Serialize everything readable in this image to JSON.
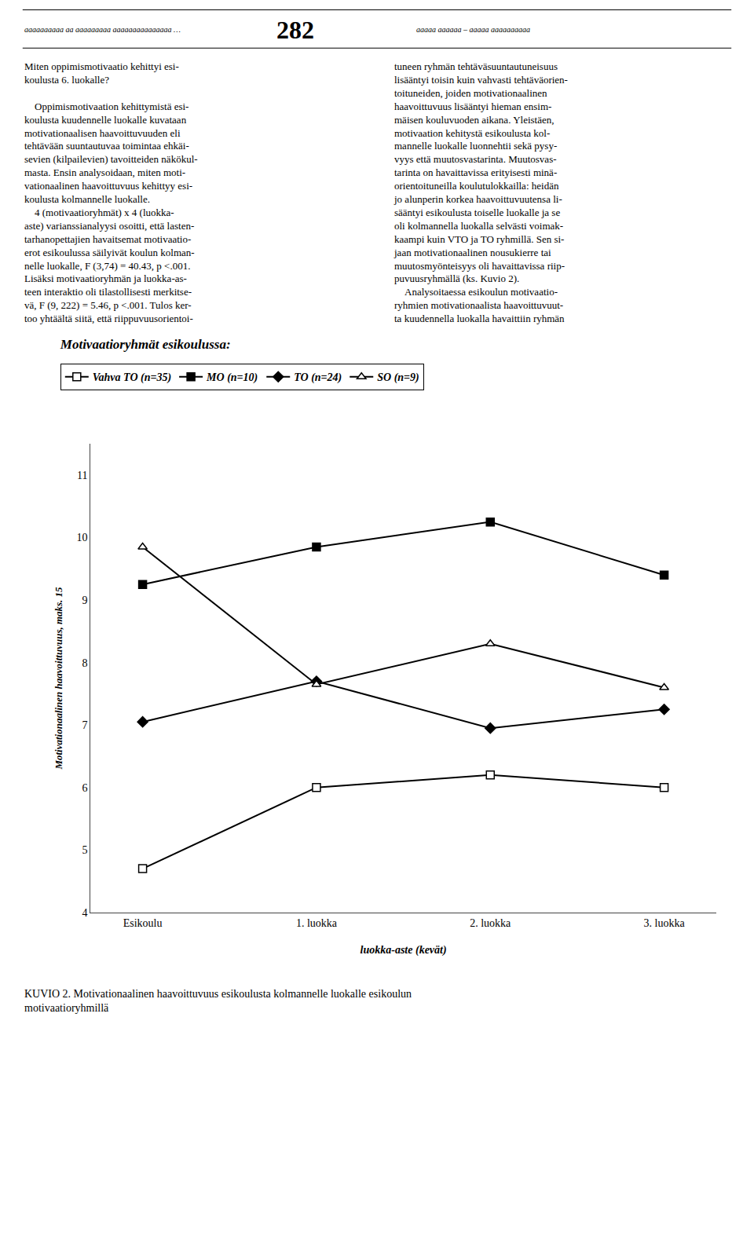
{
  "chart_data": {
    "type": "line",
    "title": "Motivaatioryhmät esikoulussa:",
    "x_label": "luokka-aste (kevät)",
    "y_label": "Motivationaalinen haavoittuvuus, maks. 15",
    "categories": [
      "Esikoulu",
      "1. luokka",
      "2. luokka",
      "3. luokka"
    ],
    "series": [
      {
        "name": "Vahva TO (n=35)",
        "color": "#000000",
        "marker": "square-open",
        "values": [
          4.7,
          6.0,
          6.2,
          6.0
        ]
      },
      {
        "name": "MO (n=10)",
        "color": "#000000",
        "marker": "square",
        "values": [
          9.25,
          9.85,
          10.25,
          9.4
        ]
      },
      {
        "name": "TO (n=24)",
        "color": "#000000",
        "marker": "diamond",
        "values": [
          7.05,
          7.7,
          6.95,
          7.25
        ]
      },
      {
        "name": "SO (n=9)",
        "color": "#000000",
        "marker": "triangle-up-open",
        "values": [
          9.85,
          7.65,
          8.3,
          7.6
        ]
      }
    ],
    "ylim": [
      4,
      11.5
    ],
    "yticks": [
      4,
      5,
      6,
      7,
      8,
      9,
      10,
      11
    ],
    "grid": false,
    "legend": "top left",
    "annotations": [
      "aaaaaaaaaa aa aaaaaaaaa aaaaaaaaaaaaaaa …",
      "282",
      "aaaaa aaaaaa – aaaaa aaaaaaaaaa",
      "Miten oppimismotivaatio kehittyi esi-\nkoulusta 6. luokalle?\n\n    Oppimismotivaation kehittymistä esi-\nkoulusta kuudennelle luokalle kuvataan\nmotivationaalisen haavoittuvuuden eli\ntehtävään suuntautuvaa toimintaa ehkäi-\nsevien (kilpailevien) tavoitteiden näkökul-\nmasta. Ensin analysoidaan, miten moti-\nvationaalinen haavoittuvuus kehittyy esi-\nkoulusta kolmannelle luokalle.\n    4 (motivaatioryhmät) x 4 (luokka-\naste) varianssianalyysi osoitti, että lasten-\ntarhanopettajien havaitsemat motivaatio-\nerot esikoulussa säilyivät koulun kolman-\nnelle luokalle, F (3,74) = 40.43, p <.001.\nLisäksi motivaatioryhmän ja luokka-as-\nteen interaktio oli tilastollisesti merkitse-\nvä, F (9, 222) = 5.46, p <.001. Tulos ker-\ntoo yhtäältä siitä, että riippuvuusorientoi-",
      "tuneen ryhmän tehtäväsuuntautuneisuus\nlisääntyi toisin kuin vahvasti tehtäväorien-\ntoituneiden, joiden motivationaalinen\nhaavoittuvuus lisääntyi hieman ensim-\nmäisen kouluvuoden aikana. Yleistäen,\nmotivaation kehitystä esikoulusta kol-\nmannelle luokalle luonnehtii sekä pysy-\nvyys että muutosvastarinta. Muutosvas-\ntarinta on havaittavissa erityisesti minä-\norientoituneilla koulutulokkailla: heidän\njo alunperin korkea haavoittuvuutensa li-\nsääntyi esikoulusta toiselle luokalle ja se\noli kolmannella luokalla selvästi voimak-\nkaampi kuin VTO ja TO ryhmillä. Sen si-\njaan motivationaalinen nousukierre tai\nmuutosmyönteisyys oli havaittavissa riip-\npuvuusryhmällä (ks. Kuvio 2).\n    Analysoitaessa esikoulun motivaatio-\nryhmien motivationaalista haavoittuvuut-\nta kuudennella luokalla havaittiin ryhmän",
      "KUVIO 2. Motivationaalinen haavoittuvuus esikoulusta kolmannelle luokalle esikoulun\nmotivaatioryhmillä"
    ]
  }
}
